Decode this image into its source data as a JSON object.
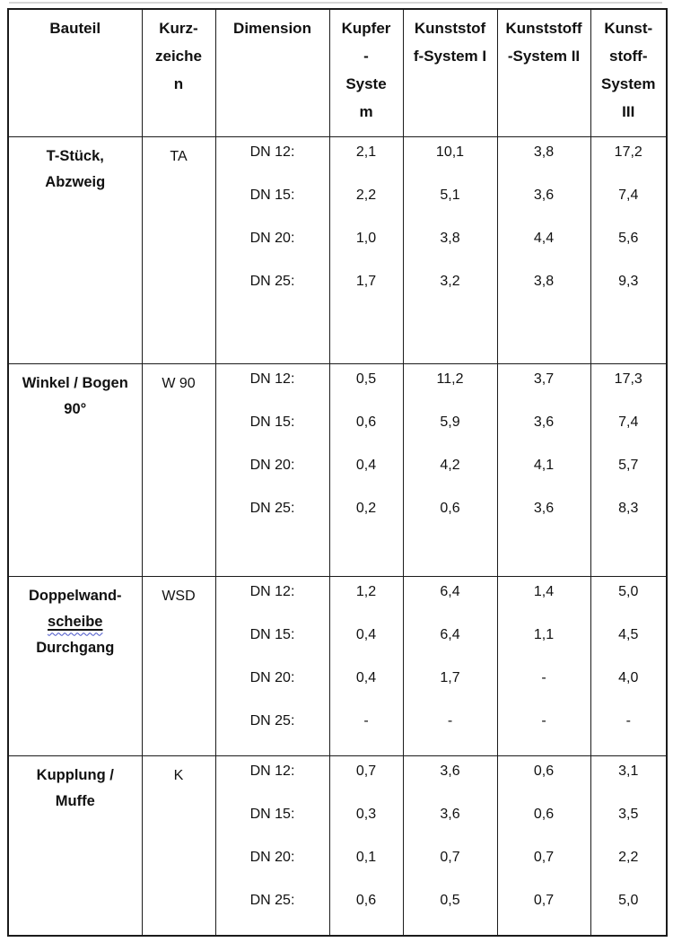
{
  "table": {
    "header": {
      "bauteil": "Bauteil",
      "kurzzeichen": "Kurz-\nzeiche\nn",
      "dimension": "Dimension",
      "kupfer_system": "Kupfer\n-\nSyste\nm",
      "kunststoff_system_1": "Kunststof\nf-System I",
      "kunststoff_system_2": "Kunststoff\n-System II",
      "kunststoff_system_3": "Kunst-\nstoff-\nSystem\nIII"
    },
    "dimension_labels": [
      "DN 12:",
      "DN 15:",
      "DN 20:",
      "DN 25:"
    ],
    "rows": [
      {
        "name_lines": [
          "T-Stück,",
          "Abzweig"
        ],
        "code": "TA",
        "kupfer": [
          "2,1",
          "2,2",
          "1,0",
          "1,7"
        ],
        "ks1": [
          "10,1",
          "5,1",
          "3,8",
          "3,2"
        ],
        "ks2": [
          "3,8",
          "3,6",
          "4,4",
          "3,8"
        ],
        "ks3": [
          "17,2",
          "7,4",
          "5,6",
          "9,3"
        ]
      },
      {
        "name_lines": [
          "Winkel / Bogen",
          "90°"
        ],
        "code": "W 90",
        "kupfer": [
          "0,5",
          "0,6",
          "0,4",
          "0,2"
        ],
        "ks1": [
          "11,2",
          "5,9",
          "4,2",
          "0,6"
        ],
        "ks2": [
          "3,7",
          "3,6",
          "4,1",
          "3,6"
        ],
        "ks3": [
          "17,3",
          "7,4",
          "5,7",
          "8,3"
        ]
      },
      {
        "name_lines": [
          "Doppelwand-",
          "scheibe",
          "Durchgang"
        ],
        "code": "WSD",
        "kupfer": [
          "1,2",
          "0,4",
          "0,4",
          "-"
        ],
        "ks1": [
          "6,4",
          "6,4",
          "1,7",
          "-"
        ],
        "ks2": [
          "1,4",
          "1,1",
          "-",
          "-"
        ],
        "ks3": [
          "5,0",
          "4,5",
          "4,0",
          "-"
        ]
      },
      {
        "name_lines": [
          "Kupplung /",
          "Muffe"
        ],
        "code": "K",
        "kupfer": [
          "0,7",
          "0,3",
          "0,1",
          "0,6"
        ],
        "ks1": [
          "3,6",
          "3,6",
          "0,7",
          "0,5"
        ],
        "ks2": [
          "0,6",
          "0,6",
          "0,7",
          "0,7"
        ],
        "ks3": [
          "3,1",
          "3,5",
          "2,2",
          "5,0"
        ]
      }
    ]
  }
}
